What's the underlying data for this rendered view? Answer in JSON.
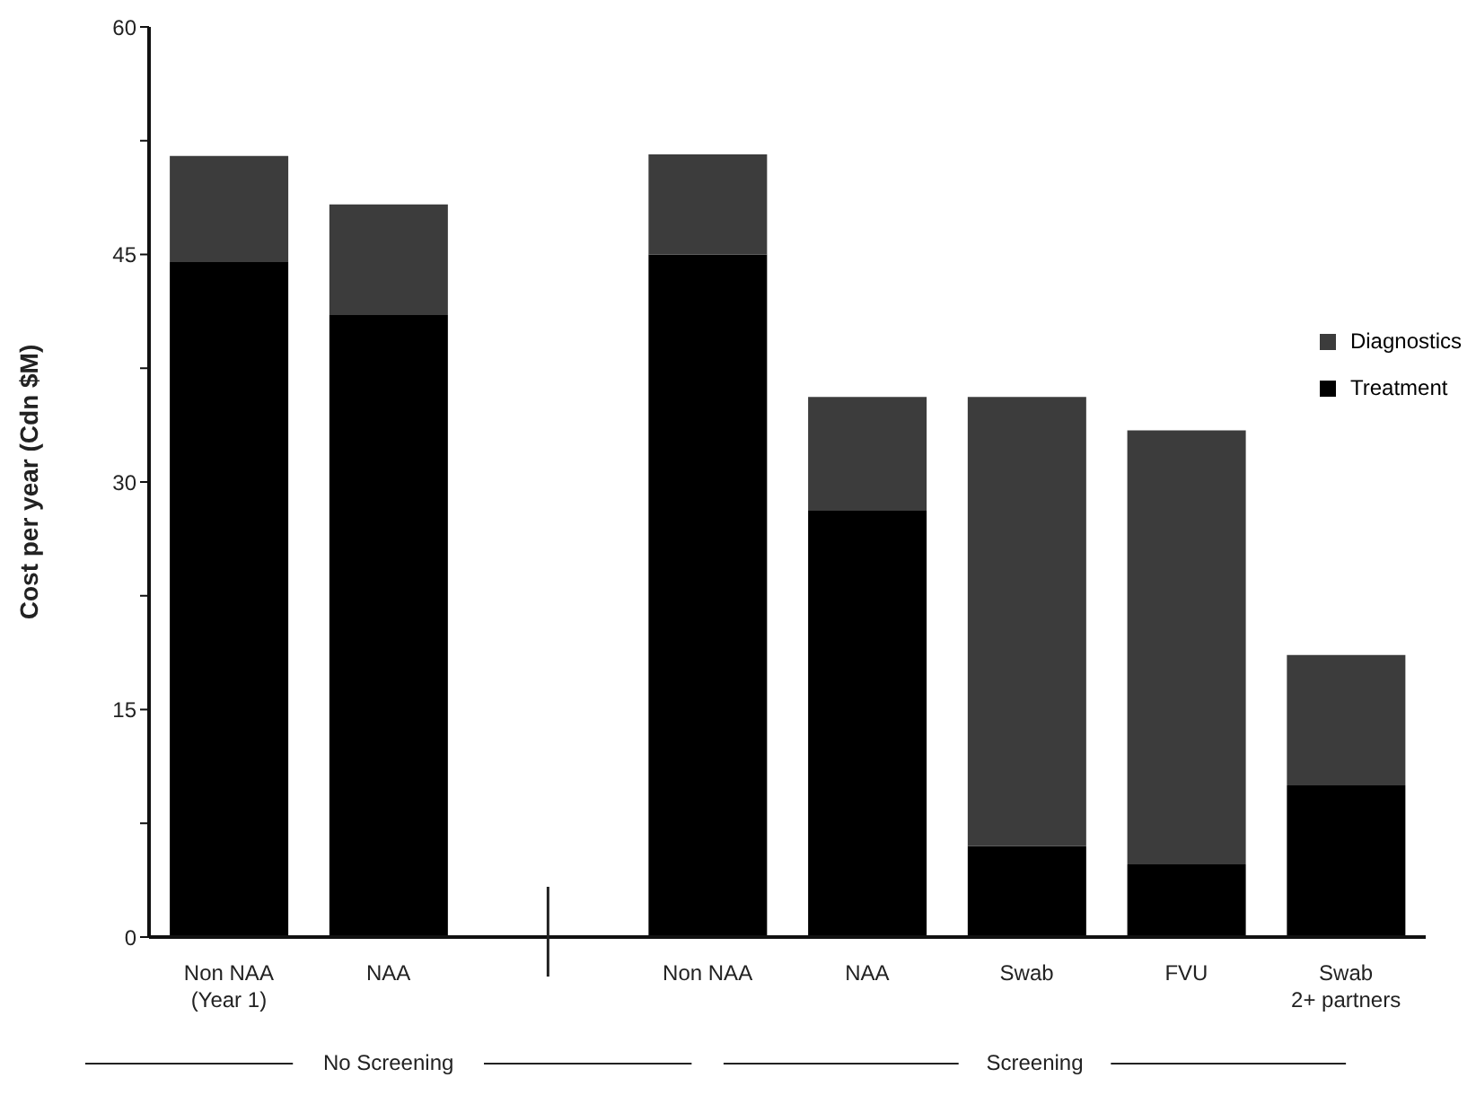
{
  "chart_data": {
    "type": "bar",
    "stacked": true,
    "ylabel": "Cost per year (Cdn $M)",
    "categories": [
      "Non NAA\n(Year 1)",
      "NAA",
      null,
      "Non NAA",
      "NAA",
      "Swab",
      "FVU",
      "Swab\n2+ partners"
    ],
    "series": [
      {
        "name": "Treatment",
        "color": "#000000",
        "values": [
          44.5,
          41,
          null,
          45,
          28.1,
          6,
          4.8,
          10
        ]
      },
      {
        "name": "Diagnostics",
        "color": "#3c3c3c",
        "values": [
          7,
          7.3,
          null,
          6.6,
          7.5,
          29.6,
          28.6,
          8.6
        ]
      }
    ],
    "ylim": [
      0,
      60
    ],
    "yticks": [
      0,
      {
        "value": 7.5,
        "label": null
      },
      15,
      {
        "value": 22.5,
        "label": null
      },
      30,
      {
        "value": 37.5,
        "label": null
      },
      45,
      {
        "value": 52.5,
        "label": null
      },
      60
    ],
    "legend": "top right",
    "grid": false,
    "annotations": [
      "No Screening",
      "Screening"
    ]
  }
}
